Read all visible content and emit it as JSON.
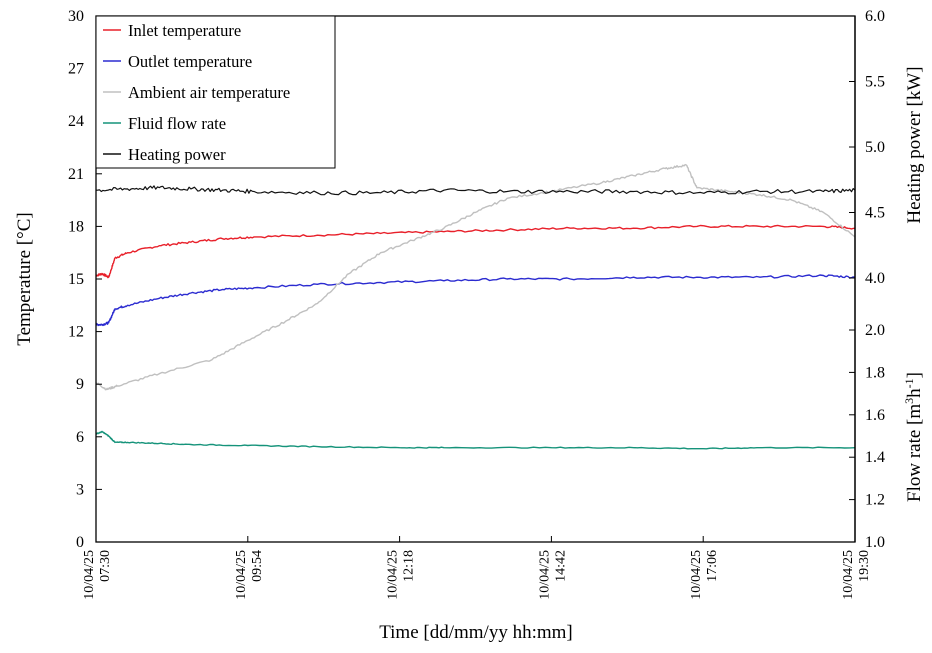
{
  "chart_data": {
    "type": "line",
    "xlabel": "Time [dd/mm/yy hh:mm]",
    "x_ticks": [
      {
        "date": "10/04/25",
        "time": "07:30"
      },
      {
        "date": "10/04/25",
        "time": "09:54"
      },
      {
        "date": "10/04/25",
        "time": "12:18"
      },
      {
        "date": "10/04/25",
        "time": "14:42"
      },
      {
        "date": "10/04/25",
        "time": "17:06"
      },
      {
        "date": "10/04/25",
        "time": "19:30"
      }
    ],
    "xlim": [
      "10/04/25 07:30",
      "10/04/25 19:30"
    ],
    "y_left": {
      "label": "Temperature [°C]",
      "ylim": [
        0,
        30
      ],
      "ticks": [
        "0",
        "3",
        "6",
        "9",
        "12",
        "15",
        "18",
        "21",
        "24",
        "27",
        "30"
      ]
    },
    "y_right_power": {
      "label": "Heating power [kW]",
      "ylim": [
        4.0,
        6.0
      ],
      "ticks": [
        "4.0",
        "4.5",
        "5.0",
        "5.5",
        "6.0"
      ]
    },
    "y_right_flow": {
      "label": "Flow rate [m³h⁻¹]",
      "label_base": "Flow rate [m",
      "label_sup1": "3",
      "label_mid": "h",
      "label_sup2": "-1",
      "label_end": "]",
      "ylim": [
        1.0,
        2.0
      ],
      "ticks": [
        "1.0",
        "1.2",
        "1.4",
        "1.6",
        "1.8",
        "2.0"
      ]
    },
    "legend_position": "top-left",
    "grid": false,
    "series": [
      {
        "name": "Inlet temperature",
        "color": "#e8202a",
        "axis": "temperature",
        "x": [
          "07:30",
          "07:36",
          "07:42",
          "07:48",
          "08:00",
          "08:30",
          "09:00",
          "09:30",
          "10:00",
          "11:00",
          "12:00",
          "13:00",
          "14:00",
          "15:00",
          "16:00",
          "17:00",
          "18:00",
          "19:00",
          "19:30"
        ],
        "y": [
          15.2,
          15.3,
          15.1,
          16.2,
          16.5,
          16.9,
          17.1,
          17.3,
          17.4,
          17.5,
          17.6,
          17.7,
          17.8,
          17.9,
          17.9,
          18.0,
          18.0,
          18.0,
          17.9
        ]
      },
      {
        "name": "Outlet temperature",
        "color": "#2b2bd0",
        "axis": "temperature",
        "x": [
          "07:30",
          "07:36",
          "07:42",
          "07:48",
          "08:00",
          "08:30",
          "09:00",
          "09:30",
          "10:00",
          "11:00",
          "12:00",
          "13:00",
          "14:00",
          "15:00",
          "16:00",
          "17:00",
          "18:00",
          "19:00",
          "19:30"
        ],
        "y": [
          12.4,
          12.4,
          12.5,
          13.3,
          13.5,
          13.9,
          14.2,
          14.4,
          14.5,
          14.7,
          14.8,
          14.9,
          15.0,
          15.0,
          15.1,
          15.1,
          15.1,
          15.2,
          15.1
        ]
      },
      {
        "name": "Ambient air temperature",
        "color": "#c0c0c0",
        "axis": "temperature",
        "x": [
          "07:30",
          "07:40",
          "07:50",
          "08:30",
          "09:20",
          "09:54",
          "10:30",
          "11:00",
          "11:30",
          "12:00",
          "12:30",
          "13:00",
          "13:30",
          "14:00",
          "14:42",
          "15:30",
          "16:00",
          "16:30",
          "16:50",
          "17:00",
          "17:30",
          "18:00",
          "18:30",
          "19:00",
          "19:30"
        ],
        "y": [
          9.1,
          8.7,
          8.9,
          9.6,
          10.4,
          11.5,
          12.6,
          13.6,
          15.3,
          16.5,
          17.2,
          17.9,
          18.8,
          19.6,
          20.0,
          20.5,
          20.9,
          21.3,
          21.5,
          20.2,
          20.0,
          19.8,
          19.5,
          18.8,
          17.4
        ]
      },
      {
        "name": "Fluid flow rate",
        "color": "#15937a",
        "axis": "flow",
        "x": [
          "07:30",
          "07:36",
          "07:42",
          "07:48",
          "08:00",
          "08:30",
          "09:00",
          "09:54",
          "11:00",
          "12:18",
          "13:00",
          "14:42",
          "16:00",
          "17:06",
          "18:00",
          "19:30"
        ],
        "y": [
          1.51,
          1.52,
          1.5,
          1.47,
          1.47,
          1.465,
          1.46,
          1.455,
          1.45,
          1.445,
          1.445,
          1.445,
          1.445,
          1.44,
          1.445,
          1.445
        ]
      },
      {
        "name": "Heating power",
        "color": "#111111",
        "axis": "power",
        "x": [
          "07:30",
          "08:00",
          "08:30",
          "09:00",
          "09:30",
          "10:00",
          "11:00",
          "12:00",
          "13:00",
          "14:00",
          "15:00",
          "16:00",
          "17:00",
          "18:00",
          "19:00",
          "19:30"
        ],
        "y": [
          4.67,
          4.68,
          4.69,
          4.68,
          4.67,
          4.66,
          4.65,
          4.65,
          4.67,
          4.66,
          4.66,
          4.66,
          4.65,
          4.66,
          4.66,
          4.67
        ]
      }
    ]
  }
}
